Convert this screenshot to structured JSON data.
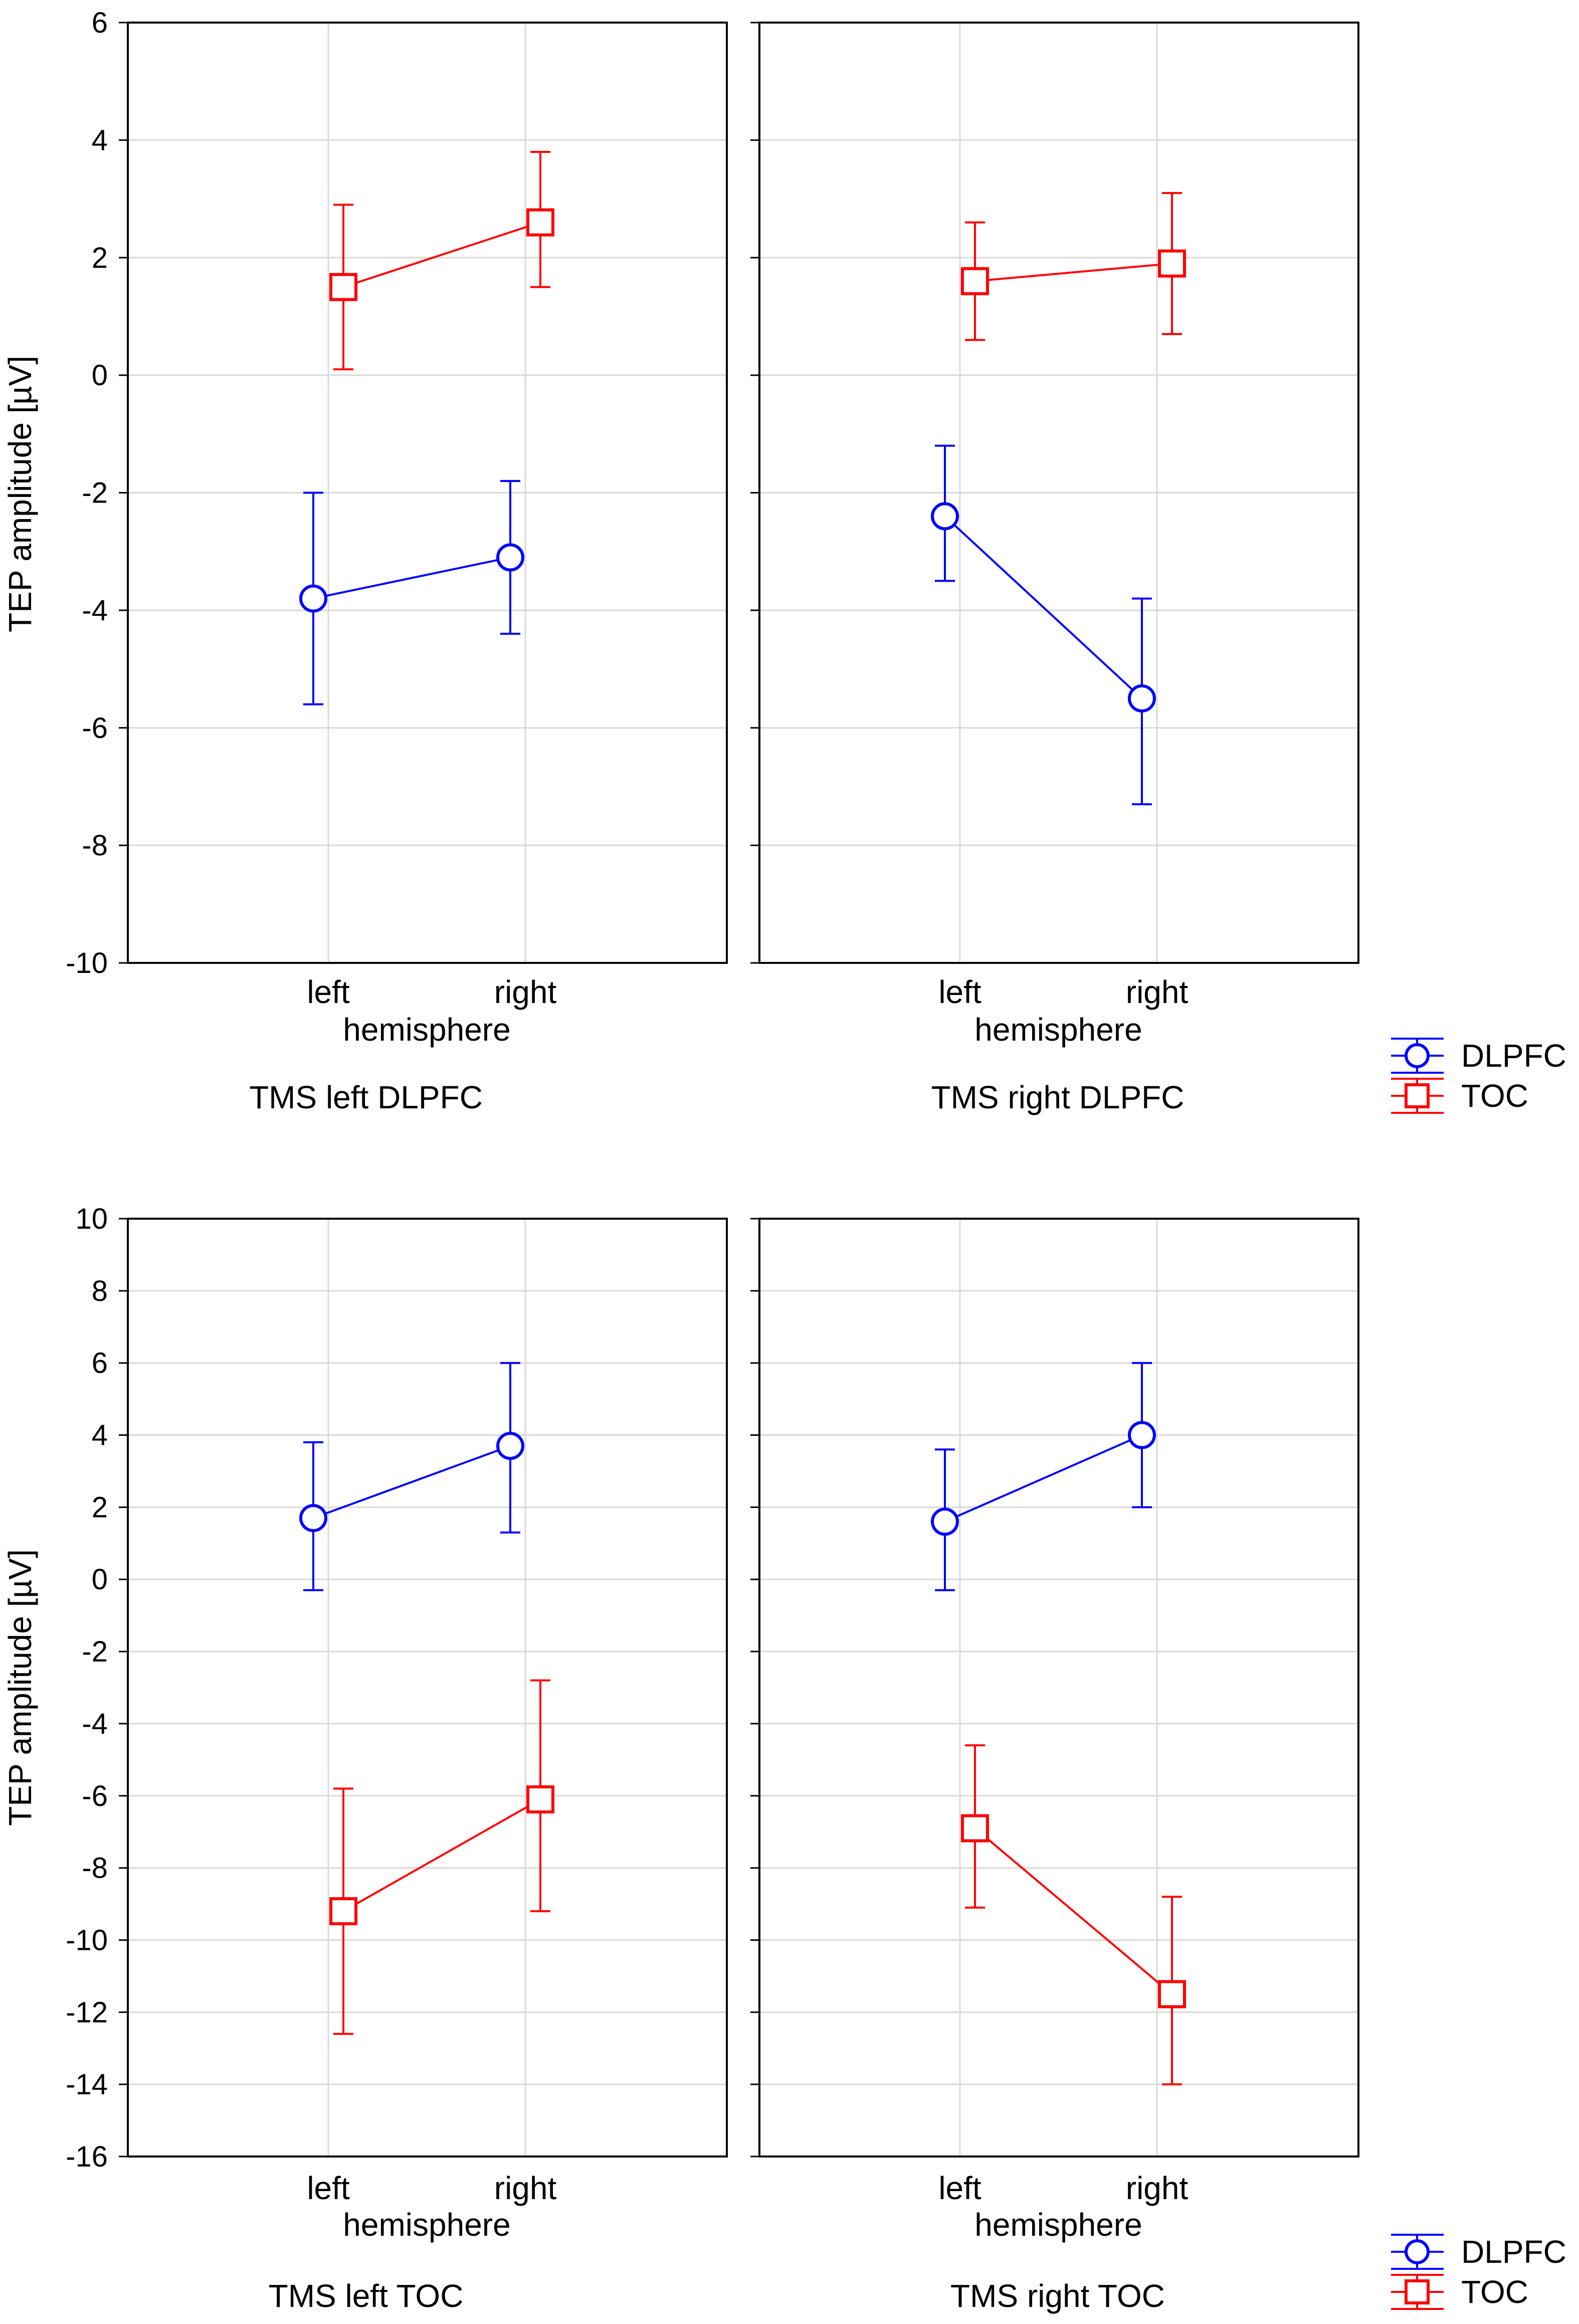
{
  "figure": {
    "ylabel": "TEP amplitude [µV]",
    "xlabel": "hemisphere",
    "categories": [
      "left",
      "right"
    ]
  },
  "legend": {
    "items": [
      {
        "name": "DLPFC",
        "color": "#0000ff",
        "marker": "circle"
      },
      {
        "name": "TOC",
        "color": "#ff0000",
        "marker": "square"
      }
    ]
  },
  "chart_data": [
    {
      "type": "line",
      "title": "TMS left DLPFC",
      "xlabel": "hemisphere",
      "ylabel": "TEP amplitude [µV]",
      "categories": [
        "left",
        "right"
      ],
      "ylim": [
        -10,
        6
      ],
      "yticks": [
        6,
        4,
        2,
        0,
        -2,
        -4,
        -6,
        -8,
        -10
      ],
      "series": [
        {
          "name": "DLPFC",
          "values": [
            -3.8,
            -3.1
          ],
          "err_low": [
            -5.6,
            -4.4
          ],
          "err_high": [
            -2.0,
            -1.8
          ]
        },
        {
          "name": "TOC",
          "values": [
            1.5,
            2.6
          ],
          "err_low": [
            0.1,
            1.5
          ],
          "err_high": [
            2.9,
            3.8
          ]
        }
      ]
    },
    {
      "type": "line",
      "title": "TMS right DLPFC",
      "xlabel": "hemisphere",
      "categories": [
        "left",
        "right"
      ],
      "ylim": [
        -10,
        6
      ],
      "series": [
        {
          "name": "DLPFC",
          "values": [
            -2.4,
            -5.5
          ],
          "err_low": [
            -3.5,
            -7.3
          ],
          "err_high": [
            -1.2,
            -3.8
          ]
        },
        {
          "name": "TOC",
          "values": [
            1.6,
            1.9
          ],
          "err_low": [
            0.6,
            0.7
          ],
          "err_high": [
            2.6,
            3.1
          ]
        }
      ]
    },
    {
      "type": "line",
      "title": "TMS left TOC",
      "xlabel": "hemisphere",
      "ylabel": "TEP amplitude [µV]",
      "categories": [
        "left",
        "right"
      ],
      "ylim": [
        -16,
        10
      ],
      "yticks": [
        10,
        8,
        6,
        4,
        2,
        0,
        -2,
        -4,
        -6,
        -8,
        -10,
        -12,
        -14,
        -16
      ],
      "series": [
        {
          "name": "DLPFC",
          "values": [
            1.7,
            3.7
          ],
          "err_low": [
            -0.3,
            1.3
          ],
          "err_high": [
            3.8,
            6.0
          ]
        },
        {
          "name": "TOC",
          "values": [
            -9.2,
            -6.1
          ],
          "err_low": [
            -12.6,
            -9.2
          ],
          "err_high": [
            -5.8,
            -2.8
          ]
        }
      ]
    },
    {
      "type": "line",
      "title": "TMS right TOC",
      "xlabel": "hemisphere",
      "categories": [
        "left",
        "right"
      ],
      "ylim": [
        -16,
        10
      ],
      "series": [
        {
          "name": "DLPFC",
          "values": [
            1.6,
            4.0
          ],
          "err_low": [
            -0.3,
            2.0
          ],
          "err_high": [
            3.6,
            6.0
          ]
        },
        {
          "name": "TOC",
          "values": [
            -6.9,
            -11.5
          ],
          "err_low": [
            -9.1,
            -14.0
          ],
          "err_high": [
            -4.6,
            -8.8
          ]
        }
      ]
    }
  ]
}
